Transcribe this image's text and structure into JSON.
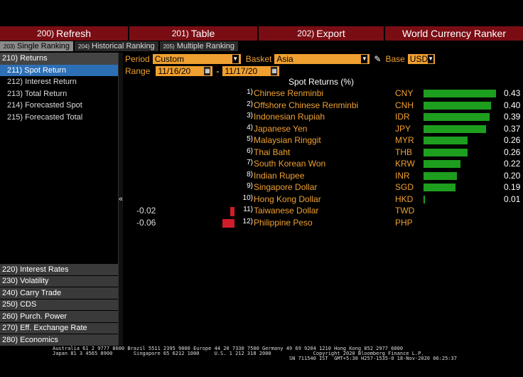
{
  "toolbar": {
    "refresh": {
      "num": "200)",
      "label": "Refresh"
    },
    "table": {
      "num": "201)",
      "label": "Table"
    },
    "export": {
      "num": "202)",
      "label": "Export"
    },
    "title": "World Currency Ranker"
  },
  "tabs": [
    {
      "num": "203)",
      "label": "Single Ranking"
    },
    {
      "num": "204)",
      "label": "Historical Ranking"
    },
    {
      "num": "205)",
      "label": "Multiple Ranking"
    }
  ],
  "sidebar": {
    "returns_header": "210) Returns",
    "items": [
      "211) Spot Return",
      "212) Interest Return",
      "213) Total Return",
      "214) Forecasted Spot",
      "215) Forecasted Total"
    ],
    "bottom": [
      "220) Interest Rates",
      "230) Volatility",
      "240) Carry Trade",
      "250) CDS",
      "260) Purch. Power",
      "270) Eff. Exchange Rate",
      "280) Economics"
    ],
    "collapse_glyph": "«"
  },
  "controls": {
    "period_label": "Period",
    "period_value": "Custom",
    "basket_label": "Basket",
    "basket_value": "Asia",
    "base_label": "Base",
    "base_value": "USD",
    "range_label": "Range",
    "range_from": "11/16/20",
    "range_to": "11/17/20",
    "range_sep": "-"
  },
  "table_title": "Spot Returns (%)",
  "colors": {
    "positive": "#1e9e1e",
    "negative": "#d11c2c",
    "accent": "#f0a030"
  },
  "chart_data": {
    "type": "bar",
    "title": "Spot Returns (%)",
    "categories": [
      "Chinese Renminbi",
      "Offshore Chinese Renminbi",
      "Indonesian Rupiah",
      "Japanese Yen",
      "Malaysian Ringgit",
      "Thai Baht",
      "South Korean Won",
      "Indian Rupee",
      "Singapore Dollar",
      "Hong Kong Dollar",
      "Taiwanese Dollar",
      "Philippine Peso"
    ],
    "codes": [
      "CNY",
      "CNH",
      "IDR",
      "JPY",
      "MYR",
      "THB",
      "KRW",
      "INR",
      "SGD",
      "HKD",
      "TWD",
      "PHP"
    ],
    "ranks": [
      "1)",
      "2)",
      "3)",
      "4)",
      "5)",
      "6)",
      "7)",
      "8)",
      "9)",
      "10)",
      "11)",
      "12)"
    ],
    "values": [
      0.43,
      0.4,
      0.39,
      0.37,
      0.26,
      0.26,
      0.22,
      0.2,
      0.19,
      0.01,
      -0.02,
      -0.06
    ],
    "labels": [
      "0.43",
      "0.40",
      "0.39",
      "0.37",
      "0.26",
      "0.26",
      "0.22",
      "0.20",
      "0.19",
      "0.01",
      "-0.02",
      "-0.06"
    ]
  },
  "footer": {
    "line1": "Australia 61 2 9777 8600 Brazil 5511 2395 9000 Europe 44 20 7330 7500 Germany 49 69 9204 1210 Hong Kong 852 2977 6000",
    "line2": "Japan 81 3 4565 8900       Singapore 65 6212 1000     U.S. 1 212 318 2000              Copyright 2020 Bloomberg Finance L.P.",
    "line3": "                                                                               SN 711540 IST  GMT+5:30 H257-1535-0 18-Nov-2020 06:25:37"
  }
}
